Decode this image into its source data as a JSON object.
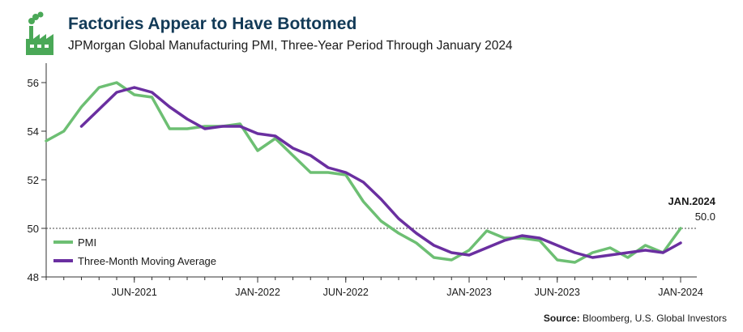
{
  "header": {
    "title": "Factories Appear to Have Bottomed",
    "subtitle": "JPMorgan Global Manufacturing PMI, Three-Year Period Through January 2024",
    "logo_icon": "factory-icon"
  },
  "source": {
    "label": "Source:",
    "text": "Bloomberg, U.S. Global Investors"
  },
  "colors": {
    "pmi": "#6dbf73",
    "moving_average": "#6a2fa0",
    "title": "#123a57",
    "logo": "#4aa857"
  },
  "chart_data": {
    "type": "line",
    "title": "",
    "xlabel": "",
    "ylabel": "",
    "ylim": [
      48,
      56.6
    ],
    "yticks": [
      48,
      50,
      52,
      54,
      56
    ],
    "x": [
      "2021-01",
      "2021-02",
      "2021-03",
      "2021-04",
      "2021-05",
      "2021-06",
      "2021-07",
      "2021-08",
      "2021-09",
      "2021-10",
      "2021-11",
      "2021-12",
      "2022-01",
      "2022-02",
      "2022-03",
      "2022-04",
      "2022-05",
      "2022-06",
      "2022-07",
      "2022-08",
      "2022-09",
      "2022-10",
      "2022-11",
      "2022-12",
      "2023-01",
      "2023-02",
      "2023-03",
      "2023-04",
      "2023-05",
      "2023-06",
      "2023-07",
      "2023-08",
      "2023-09",
      "2023-10",
      "2023-11",
      "2023-12",
      "2024-01"
    ],
    "xtick_labels": [
      {
        "x": "2021-06",
        "label": "JUN-2021"
      },
      {
        "x": "2022-01",
        "label": "JAN-2022"
      },
      {
        "x": "2022-06",
        "label": "JUN-2022"
      },
      {
        "x": "2023-01",
        "label": "JAN-2023"
      },
      {
        "x": "2023-06",
        "label": "JUN-2023"
      },
      {
        "x": "2024-01",
        "label": "JAN-2024"
      }
    ],
    "reference_line": 50,
    "grid": false,
    "legend_position": "bottom-left",
    "series": [
      {
        "name": "PMI",
        "color": "#6dbf73",
        "values": [
          53.6,
          54.0,
          55.0,
          55.8,
          56.0,
          55.5,
          55.4,
          54.1,
          54.1,
          54.2,
          54.2,
          54.3,
          53.2,
          53.7,
          53.0,
          52.3,
          52.3,
          52.2,
          51.1,
          50.3,
          49.8,
          49.4,
          48.8,
          48.7,
          49.1,
          49.9,
          49.6,
          49.6,
          49.5,
          48.7,
          48.6,
          49.0,
          49.2,
          48.8,
          49.3,
          49.0,
          50.0
        ]
      },
      {
        "name": "Three-Month Moving Average",
        "color": "#6a2fa0",
        "values": [
          null,
          null,
          54.2,
          54.9,
          55.6,
          55.8,
          55.6,
          55.0,
          54.5,
          54.1,
          54.2,
          54.2,
          53.9,
          53.8,
          53.3,
          53.0,
          52.5,
          52.3,
          51.9,
          51.2,
          50.4,
          49.8,
          49.3,
          49.0,
          48.9,
          49.2,
          49.5,
          49.7,
          49.6,
          49.3,
          49.0,
          48.8,
          48.9,
          49.0,
          49.1,
          49.0,
          49.4
        ]
      }
    ],
    "annotation": {
      "label": "JAN.2024",
      "value_text": "50.0",
      "x": "2024-01",
      "y": 50.0
    }
  }
}
